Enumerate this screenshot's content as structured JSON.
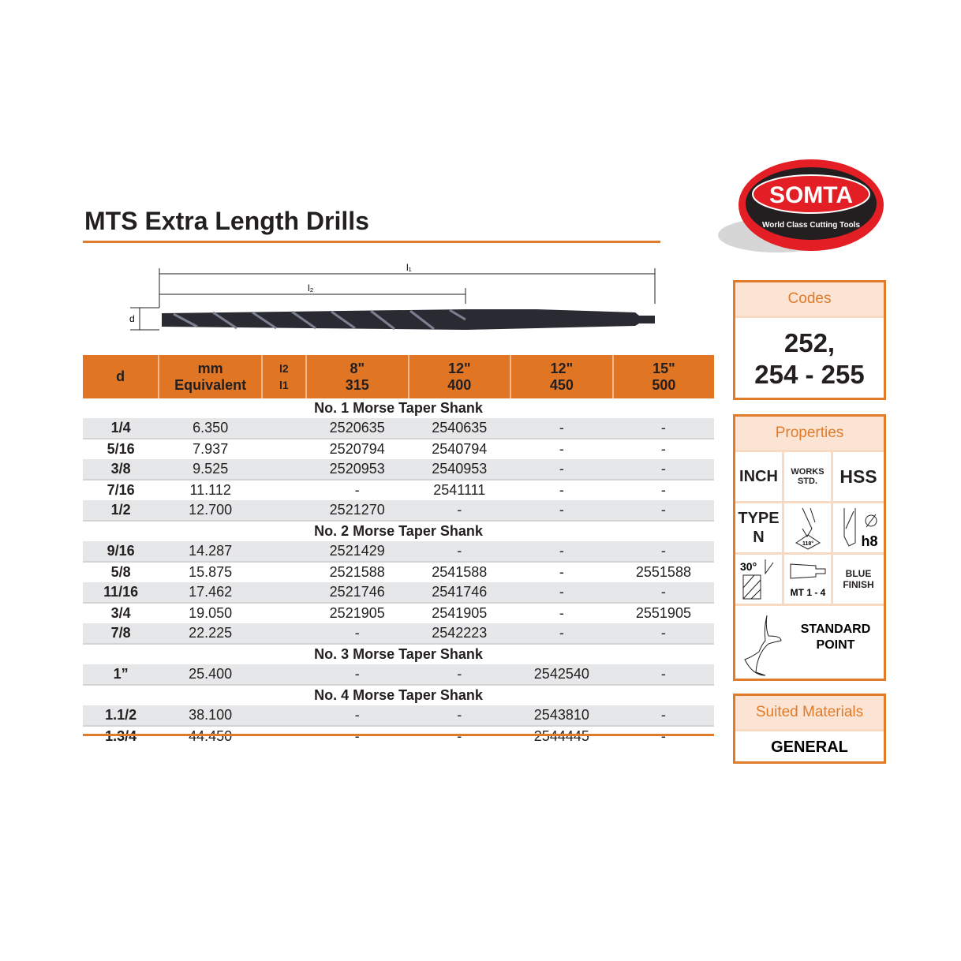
{
  "brand": {
    "name": "SOMTA",
    "tagline": "World Class Cutting Tools",
    "colors": {
      "red": "#e31e24",
      "accent": "#e07b2a"
    }
  },
  "title": "MTS Extra Length Drills",
  "diagram": {
    "l1": "l1",
    "l2": "l2",
    "d": "d"
  },
  "table": {
    "headers": [
      {
        "top": "d",
        "bottom": ""
      },
      {
        "top": "mm",
        "bottom": "Equivalent"
      },
      {
        "top": "l2",
        "bottom": "l1"
      },
      {
        "top": "8\"",
        "bottom": "315"
      },
      {
        "top": "12\"",
        "bottom": "400"
      },
      {
        "top": "12\"",
        "bottom": "450"
      },
      {
        "top": "15\"",
        "bottom": "500"
      }
    ],
    "groups": [
      {
        "title": "No. 1 Morse Taper Shank",
        "rows": [
          [
            "1/4",
            "6.350",
            "2520635",
            "2540635",
            "-",
            "-"
          ],
          [
            "5/16",
            "7.937",
            "2520794",
            "2540794",
            "-",
            "-"
          ],
          [
            "3/8",
            "9.525",
            "2520953",
            "2540953",
            "-",
            "-"
          ],
          [
            "7/16",
            "11.112",
            "-",
            "2541111",
            "-",
            "-"
          ],
          [
            "1/2",
            "12.700",
            "2521270",
            "-",
            "-",
            "-"
          ]
        ]
      },
      {
        "title": "No. 2 Morse Taper Shank",
        "rows": [
          [
            "9/16",
            "14.287",
            "2521429",
            "-",
            "-",
            "-"
          ],
          [
            "5/8",
            "15.875",
            "2521588",
            "2541588",
            "-",
            "2551588"
          ],
          [
            "11/16",
            "17.462",
            "2521746",
            "2541746",
            "-",
            "-"
          ],
          [
            "3/4",
            "19.050",
            "2521905",
            "2541905",
            "-",
            "2551905"
          ],
          [
            "7/8",
            "22.225",
            "-",
            "2542223",
            "-",
            "-"
          ]
        ]
      },
      {
        "title": "No. 3 Morse Taper Shank",
        "rows": [
          [
            "1”",
            "25.400",
            "-",
            "-",
            "2542540",
            "-"
          ]
        ]
      },
      {
        "title": "No. 4 Morse Taper Shank",
        "rows": [
          [
            "1.1/2",
            "38.100",
            "-",
            "-",
            "2543810",
            "-"
          ],
          [
            "1.3/4",
            "44.450",
            "-",
            "-",
            "2544445",
            "-"
          ]
        ]
      }
    ]
  },
  "codes": {
    "label": "Codes",
    "line1": "252,",
    "line2": "254 - 255"
  },
  "properties": {
    "label": "Properties",
    "inch": "INCH",
    "works1": "WORKS",
    "works2": "STD.",
    "hss": "HSS",
    "type1": "TYPE",
    "type2": "N",
    "angle": "118°",
    "h8": "h8",
    "helix": "30°",
    "mt": "MT 1 - 4",
    "blue1": "BLUE",
    "blue2": "FINISH",
    "point1": "STANDARD",
    "point2": "POINT"
  },
  "materials": {
    "label": "Suited Materials",
    "value": "GENERAL"
  }
}
